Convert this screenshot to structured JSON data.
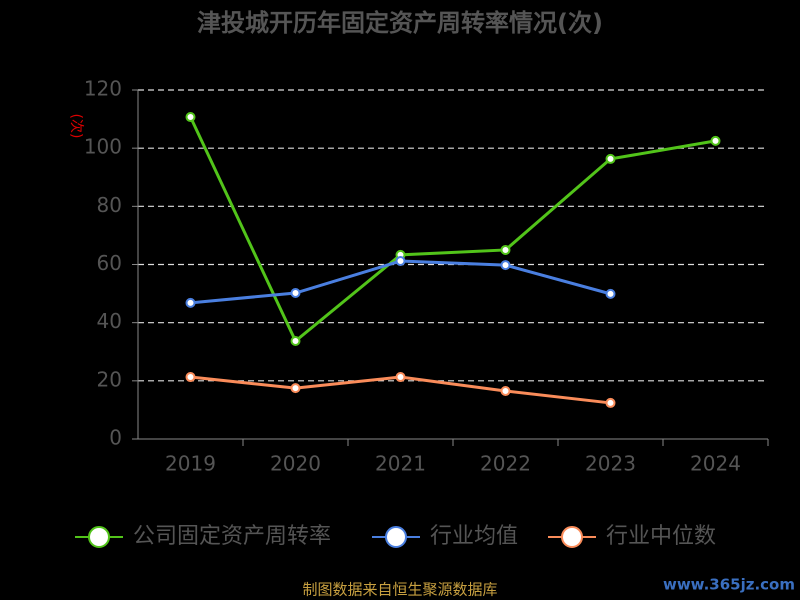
{
  "chart_data": {
    "type": "line",
    "title": "津投城开历年固定资产周转率情况(次)",
    "y_label": "(次)",
    "categories": [
      "2019",
      "2020",
      "2021",
      "2022",
      "2023",
      "2024"
    ],
    "series": [
      {
        "name": "公司固定资产周转率",
        "color": "#52c41a",
        "values": [
          110.7,
          33.7,
          63.3,
          65,
          96.3,
          102.5
        ]
      },
      {
        "name": "行业均值",
        "color": "#4a7fe0",
        "values": [
          46.8,
          50.2,
          61.2,
          59.8,
          49.9,
          null
        ]
      },
      {
        "name": "行业中位数",
        "color": "#fa8c5a",
        "values": [
          21.3,
          17.5,
          21.3,
          16.5,
          12.4,
          null
        ]
      }
    ],
    "ylim": [
      0,
      120
    ],
    "yticks": [
      0,
      20,
      40,
      60,
      80,
      100,
      120
    ],
    "grid": true,
    "source": "制图数据来自恒生聚源数据库",
    "watermark": "www.365jz.com"
  }
}
